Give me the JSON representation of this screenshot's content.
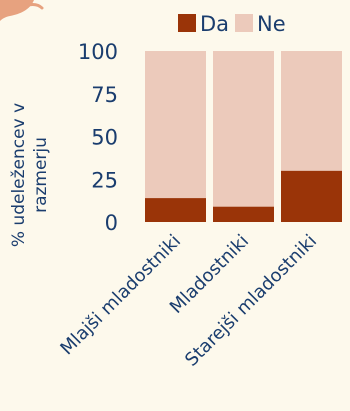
{
  "chart_data": {
    "type": "bar",
    "stacked": true,
    "categories": [
      "Mlajši mladostniki",
      "Mladostniki",
      "Starejši mladostniki"
    ],
    "series": [
      {
        "name": "Da",
        "values": [
          14,
          9,
          30
        ],
        "color": "#9a3408"
      },
      {
        "name": "Ne",
        "values": [
          86,
          91,
          70
        ],
        "color": "#eccabb"
      }
    ],
    "ylabel_line1": "% udeležencev v",
    "ylabel_line2": "razmerju",
    "ylim": [
      0,
      100
    ],
    "yticks": [
      "0",
      "25",
      "50",
      "75",
      "100"
    ],
    "legend_position": "top",
    "grid": false
  },
  "decoration": {
    "corner_shape": "peach-blob-top-left",
    "color": "#e7a27f"
  }
}
